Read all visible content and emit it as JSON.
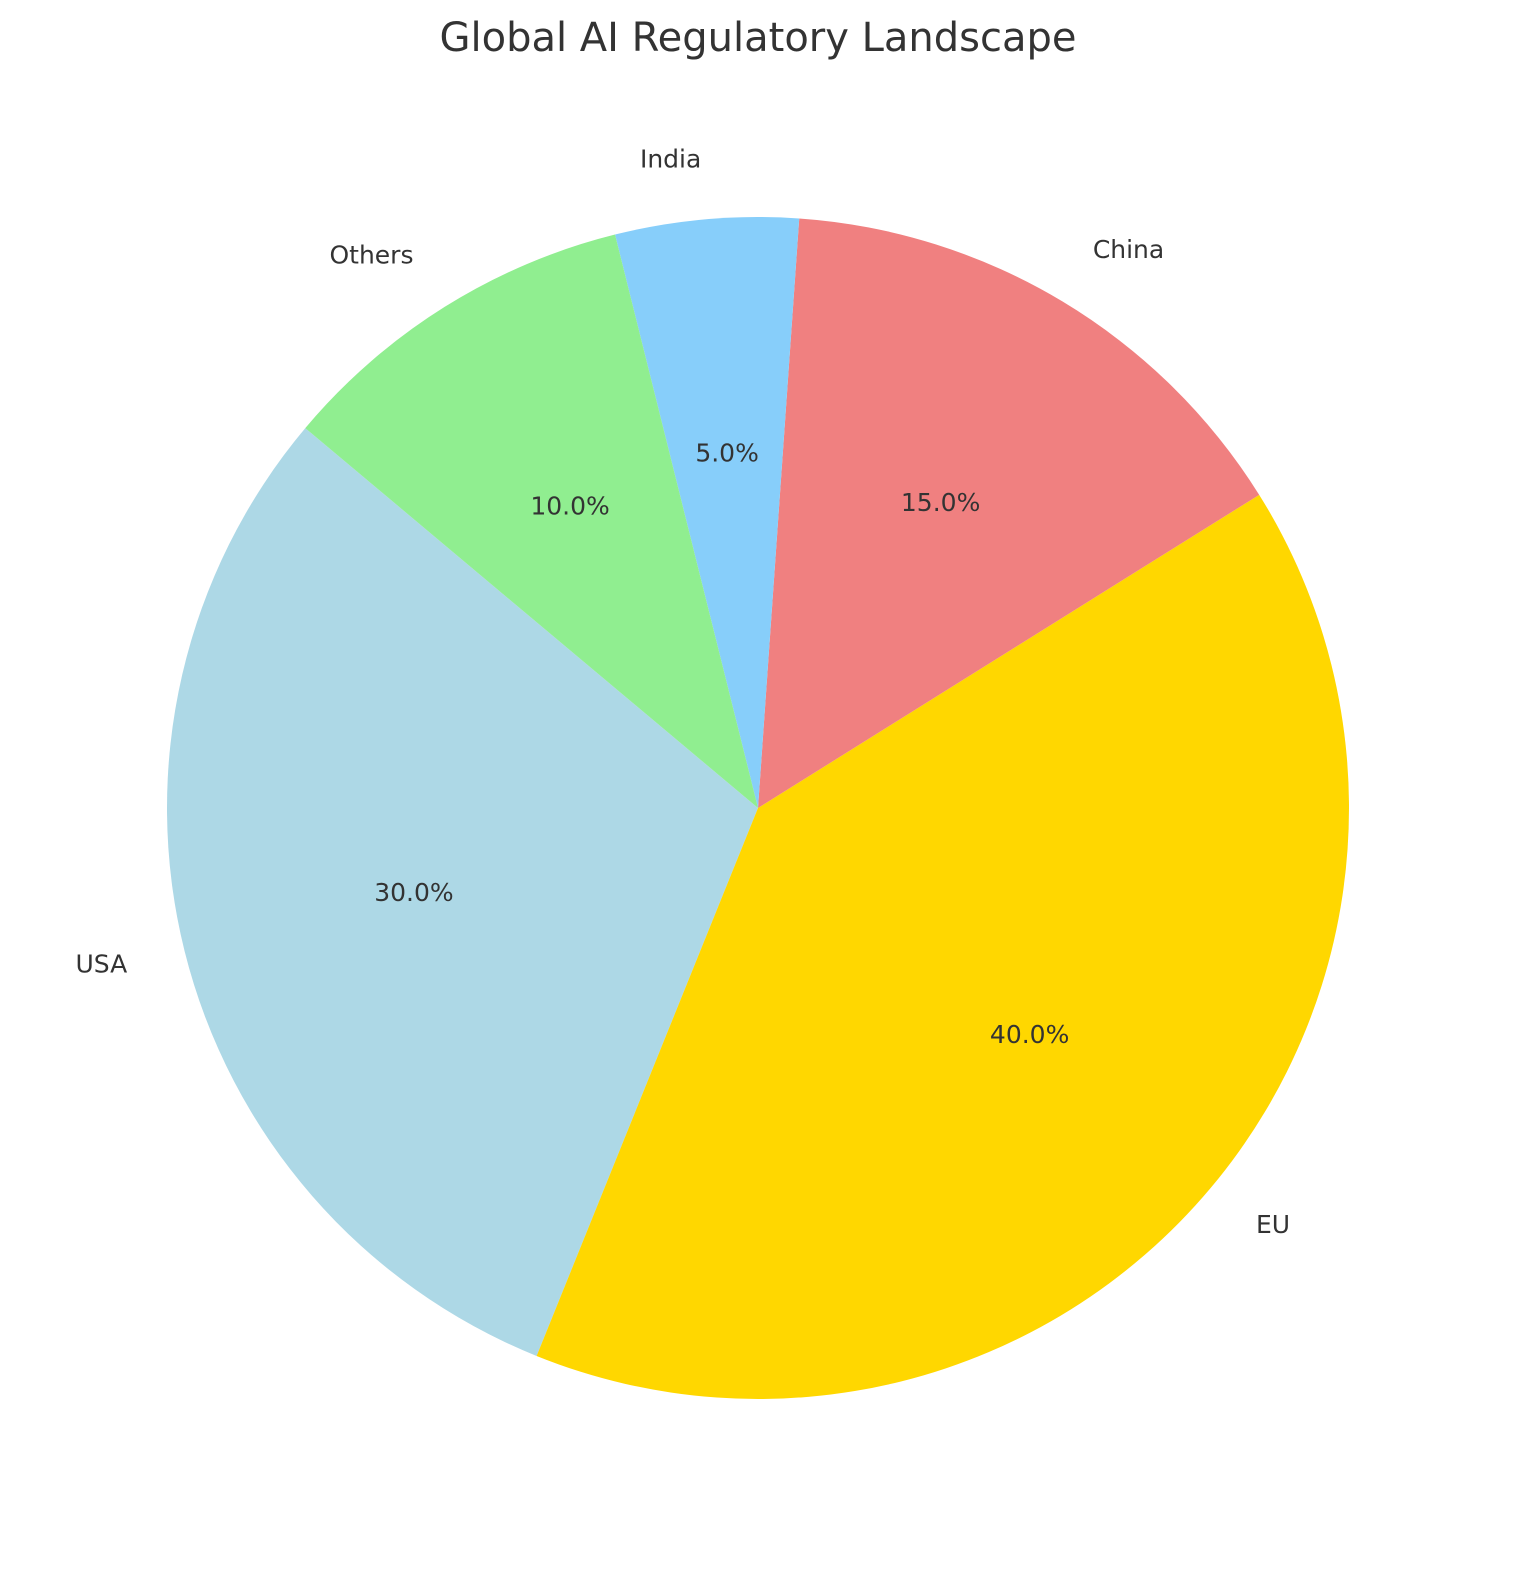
{
  "chart_data": {
    "type": "pie",
    "title": "Global AI Regulatory Landscape",
    "categories": [
      "USA",
      "EU",
      "China",
      "India",
      "Others"
    ],
    "values": [
      30,
      40,
      15,
      5,
      10
    ],
    "value_labels": [
      "30.0%",
      "40.0%",
      "15.0%",
      "5.0%",
      "10.0%"
    ],
    "colors": [
      "#add8e6",
      "#ffd700",
      "#f08080",
      "#87cefa",
      "#90ee90"
    ]
  }
}
